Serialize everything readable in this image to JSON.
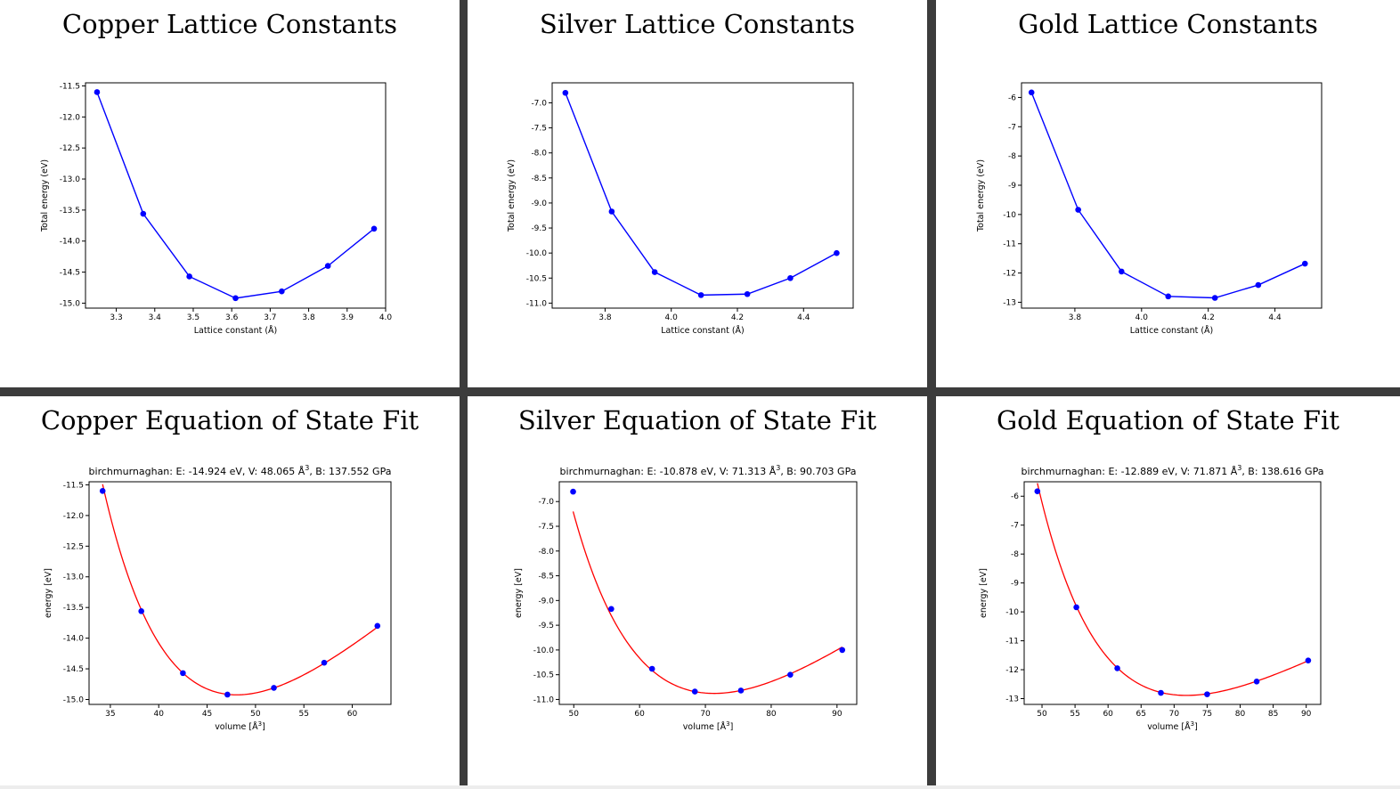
{
  "panels": [
    {
      "id": "cu-lat",
      "title": "Copper Lattice Constants"
    },
    {
      "id": "ag-lat",
      "title": "Silver Lattice Constants"
    },
    {
      "id": "au-lat",
      "title": "Gold Lattice Constants"
    },
    {
      "id": "cu-eos",
      "title": "Copper Equation of State Fit"
    },
    {
      "id": "ag-eos",
      "title": "Silver Equation of State Fit"
    },
    {
      "id": "au-eos",
      "title": "Gold Equation of State Fit"
    }
  ],
  "chart_data": [
    {
      "type": "line",
      "title": "Copper Lattice Constants",
      "xlabel": "Lattice constant (Å)",
      "ylabel": "Total energy (eV)",
      "xlim": [
        3.22,
        4.0
      ],
      "ylim": [
        -15.08,
        -11.45
      ],
      "xticks": [
        "3.3",
        "3.4",
        "3.5",
        "3.6",
        "3.7",
        "3.8",
        "3.9",
        "4.0"
      ],
      "yticks": [
        "-11.5",
        "-12.0",
        "-12.5",
        "-13.0",
        "-13.5",
        "-14.0",
        "-14.5",
        "-15.0"
      ],
      "series": [
        {
          "color": "#0000ff",
          "x": [
            3.25,
            3.37,
            3.49,
            3.61,
            3.73,
            3.85,
            3.97
          ],
          "y": [
            -11.6,
            -13.56,
            -14.57,
            -14.92,
            -14.81,
            -14.4,
            -13.8
          ]
        }
      ],
      "grid": false
    },
    {
      "type": "line",
      "title": "Silver Lattice Constants",
      "xlabel": "Lattice constant (Å)",
      "ylabel": "Total energy (eV)",
      "xlim": [
        3.64,
        4.55
      ],
      "ylim": [
        -11.1,
        -6.6
      ],
      "xticks": [
        "3.8",
        "4.0",
        "4.2",
        "4.4"
      ],
      "yticks": [
        "-7.0",
        "-7.5",
        "-8.0",
        "-8.5",
        "-9.0",
        "-9.5",
        "-10.0",
        "-10.5",
        "-11.0"
      ],
      "series": [
        {
          "color": "#0000ff",
          "x": [
            3.68,
            3.82,
            3.95,
            4.09,
            4.23,
            4.36,
            4.5
          ],
          "y": [
            -6.8,
            -9.17,
            -10.38,
            -10.84,
            -10.82,
            -10.5,
            -10.0
          ]
        }
      ],
      "grid": false
    },
    {
      "type": "line",
      "title": "Gold Lattice Constants",
      "xlabel": "Lattice constant (Å)",
      "ylabel": "Total energy (eV)",
      "xlim": [
        3.64,
        4.54
      ],
      "ylim": [
        -13.2,
        -5.5
      ],
      "xticks": [
        "3.8",
        "4.0",
        "4.2",
        "4.4"
      ],
      "yticks": [
        "-6",
        "-7",
        "-8",
        "-9",
        "-10",
        "-11",
        "-12",
        "-13"
      ],
      "series": [
        {
          "color": "#0000ff",
          "x": [
            3.67,
            3.81,
            3.94,
            4.08,
            4.22,
            4.35,
            4.49
          ],
          "y": [
            -5.83,
            -9.84,
            -11.95,
            -12.8,
            -12.85,
            -12.41,
            -11.68
          ]
        }
      ],
      "grid": false
    },
    {
      "type": "line",
      "title": "Copper Equation of State Fit",
      "subtitle_pre": "birchmurnaghan: E: -14.924 eV, V: 48.065 Å",
      "subtitle_sup": "3",
      "subtitle_post": ", B: 137.552 GPa",
      "xlabel_pre": "volume [Å",
      "xlabel_sup": "3",
      "xlabel_post": "]",
      "ylabel": "energy [eV]",
      "xlim": [
        32.8,
        64.0
      ],
      "ylim": [
        -15.08,
        -11.45
      ],
      "xticks": [
        "35",
        "40",
        "45",
        "50",
        "55",
        "60"
      ],
      "yticks": [
        "-11.5",
        "-12.0",
        "-12.5",
        "-13.0",
        "-13.5",
        "-14.0",
        "-14.5",
        "-15.0"
      ],
      "series": [
        {
          "name": "data",
          "color": "#0000ff",
          "x": [
            34.2,
            38.2,
            42.5,
            47.1,
            51.9,
            57.1,
            62.6
          ],
          "y": [
            -11.6,
            -13.56,
            -14.57,
            -14.92,
            -14.81,
            -14.4,
            -13.8
          ]
        },
        {
          "name": "fit",
          "color": "#ff0000",
          "curve": "birchmurnaghan",
          "E0": -14.924,
          "V0": 48.065,
          "B_GPa": 137.552,
          "Bp": 5.1
        }
      ],
      "grid": false
    },
    {
      "type": "line",
      "title": "Silver Equation of State Fit",
      "subtitle_pre": "birchmurnaghan: E: -10.878 eV, V: 71.313 Å",
      "subtitle_sup": "3",
      "subtitle_post": ", B: 90.703 GPa",
      "xlabel_pre": "volume [Å",
      "xlabel_sup": "3",
      "xlabel_post": "]",
      "ylabel": "energy [eV]",
      "xlim": [
        47.8,
        93.0
      ],
      "ylim": [
        -11.1,
        -6.6
      ],
      "xticks": [
        "50",
        "60",
        "70",
        "80",
        "90"
      ],
      "yticks": [
        "-7.0",
        "-7.5",
        "-8.0",
        "-8.5",
        "-9.0",
        "-9.5",
        "-10.0",
        "-10.5",
        "-11.0"
      ],
      "series": [
        {
          "name": "data",
          "color": "#0000ff",
          "x": [
            49.9,
            55.7,
            61.9,
            68.4,
            75.4,
            82.9,
            90.8
          ],
          "y": [
            -6.8,
            -9.17,
            -10.38,
            -10.84,
            -10.82,
            -10.5,
            -10.0
          ]
        },
        {
          "name": "fit",
          "color": "#ff0000",
          "curve": "birchmurnaghan",
          "E0": -10.878,
          "V0": 71.313,
          "B_GPa": 90.703,
          "Bp": 4.9
        }
      ],
      "grid": false
    },
    {
      "type": "line",
      "title": "Gold Equation of State Fit",
      "subtitle_pre": "birchmurnaghan: E: -12.889 eV, V: 71.871 Å",
      "subtitle_sup": "3",
      "subtitle_post": ", B: 138.616 GPa",
      "xlabel_pre": "volume [Å",
      "xlabel_sup": "3",
      "xlabel_post": "]",
      "ylabel": "energy [eV]",
      "xlim": [
        47.3,
        92.2
      ],
      "ylim": [
        -13.2,
        -5.5
      ],
      "xticks": [
        "50",
        "55",
        "60",
        "65",
        "70",
        "75",
        "80",
        "85",
        "90"
      ],
      "yticks": [
        "-6",
        "-7",
        "-8",
        "-9",
        "-10",
        "-11",
        "-12",
        "-13"
      ],
      "series": [
        {
          "name": "data",
          "color": "#0000ff",
          "x": [
            49.3,
            55.2,
            61.4,
            68.0,
            75.0,
            82.5,
            90.3
          ],
          "y": [
            -5.83,
            -9.84,
            -11.95,
            -12.8,
            -12.85,
            -12.41,
            -11.68
          ]
        },
        {
          "name": "fit",
          "color": "#ff0000",
          "curve": "birchmurnaghan",
          "E0": -12.889,
          "V0": 71.871,
          "B_GPa": 138.616,
          "Bp": 6.0
        }
      ],
      "grid": false
    }
  ]
}
